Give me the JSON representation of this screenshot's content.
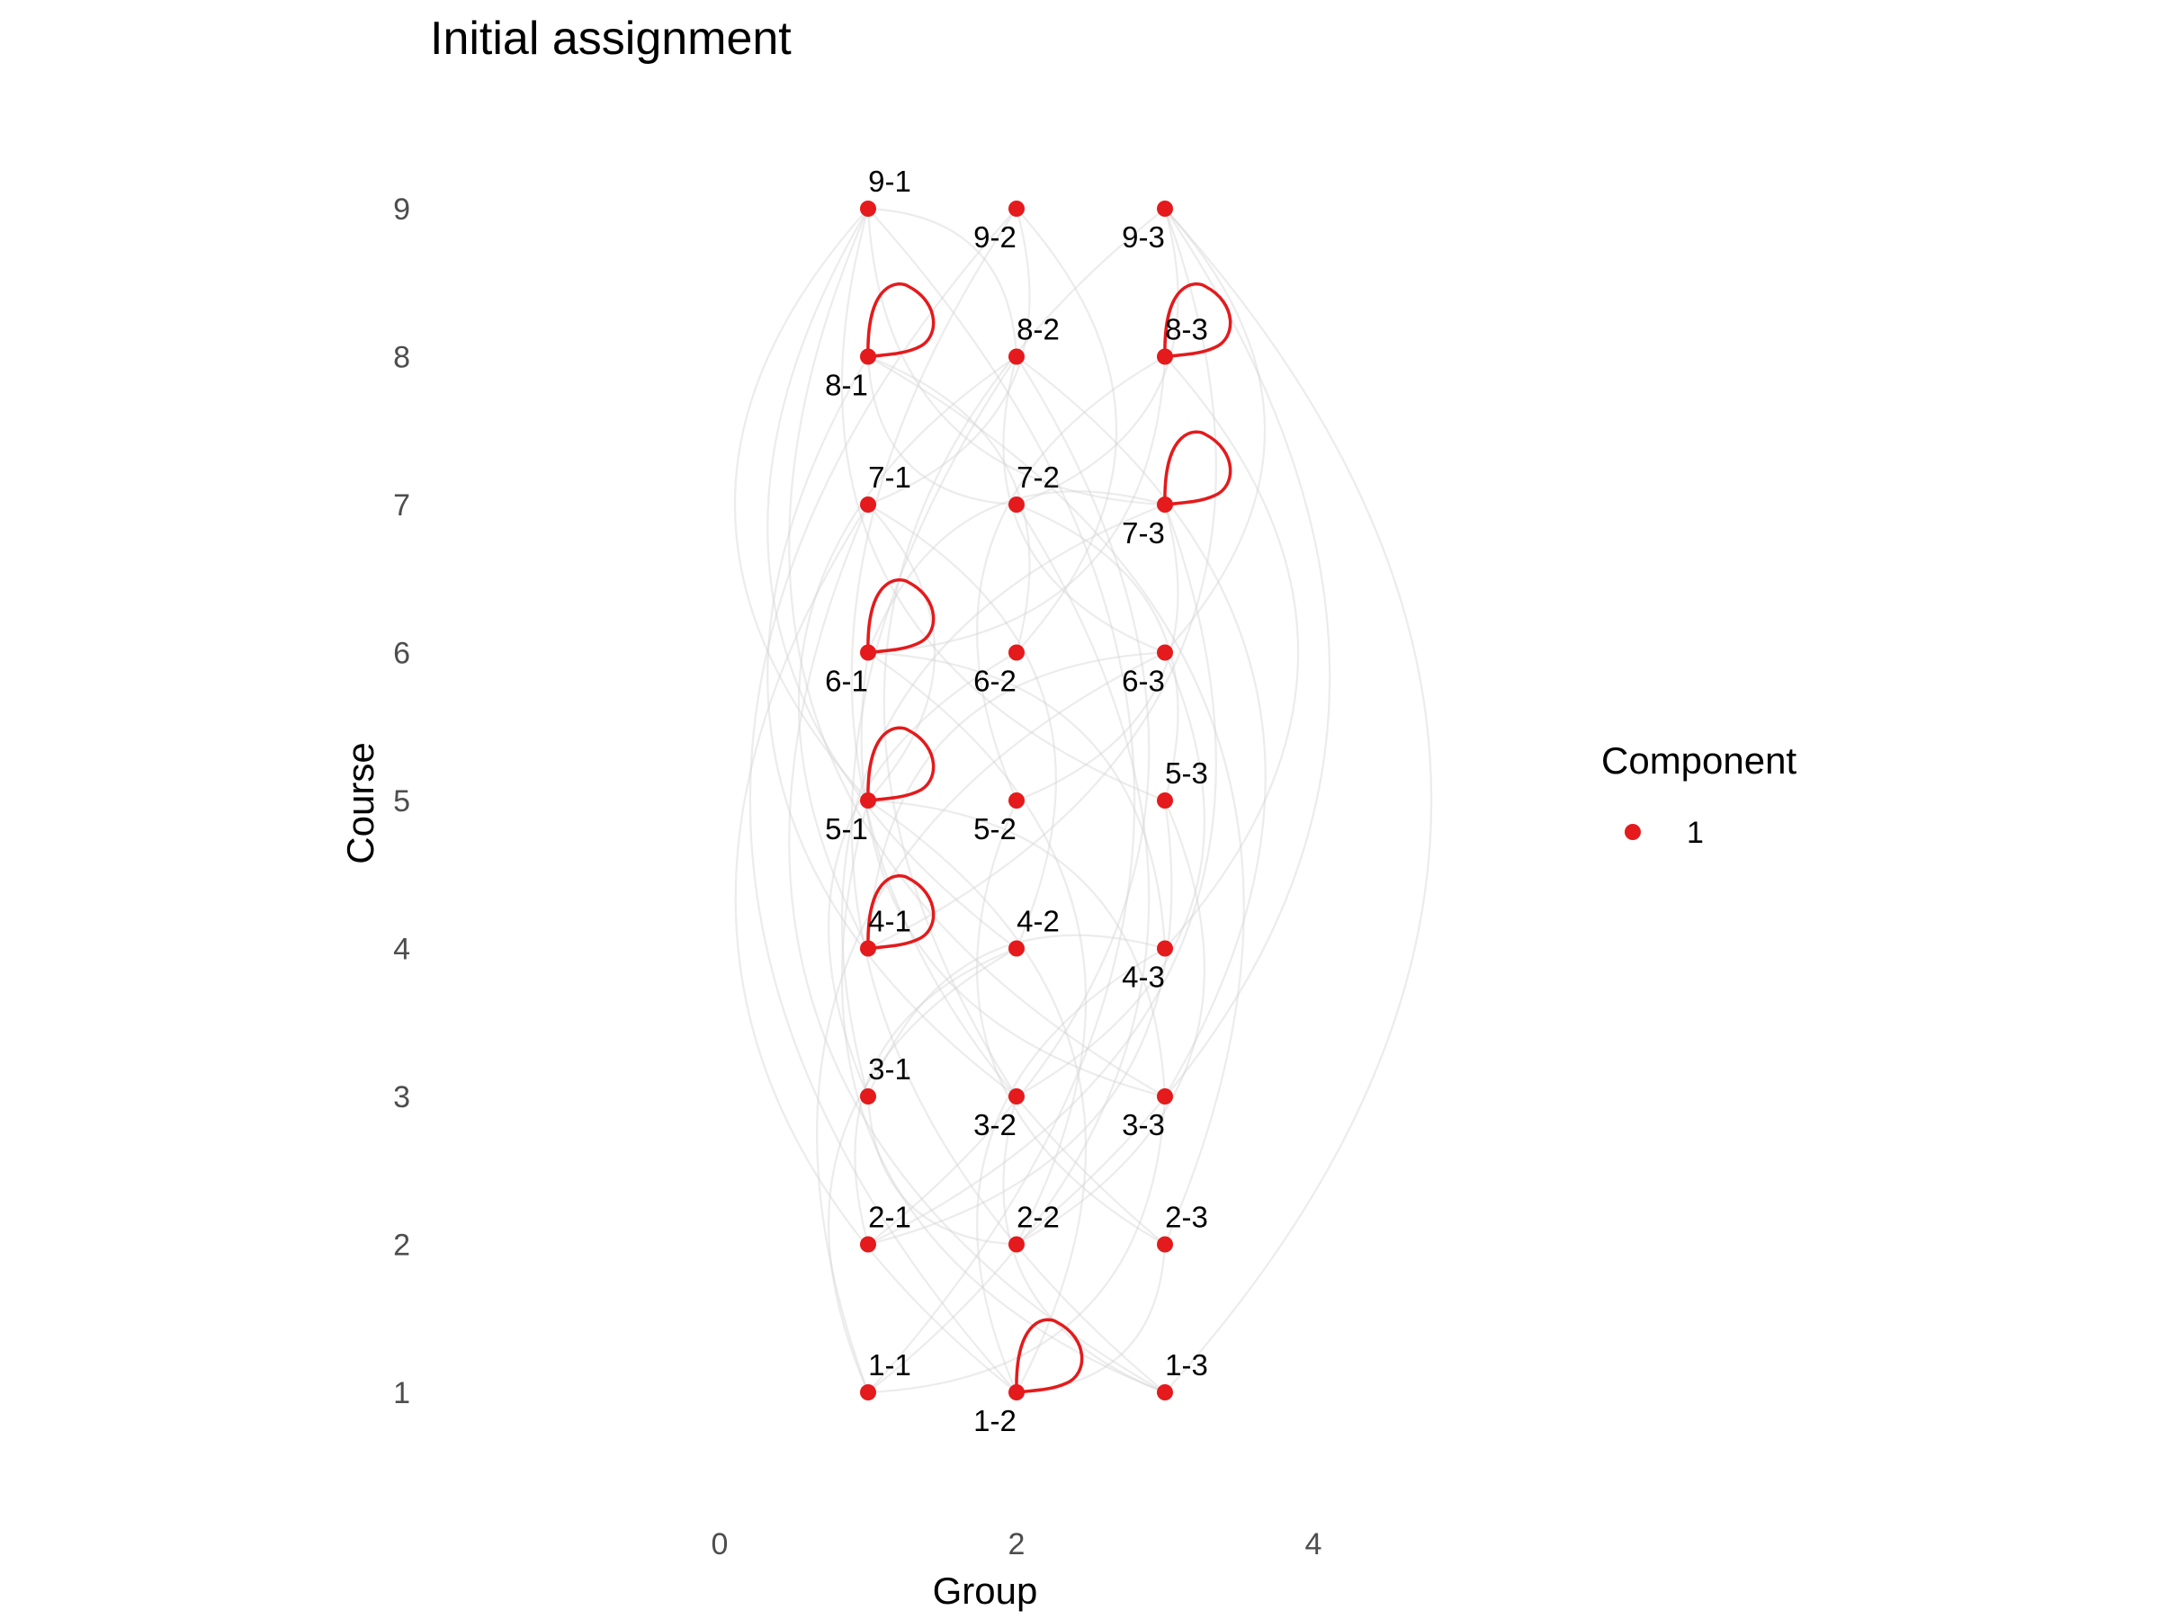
{
  "chart_data": {
    "type": "scatter",
    "title": "Initial assignment",
    "xlabel": "Group",
    "ylabel": "Course",
    "xlim": [
      -1.2,
      5.4
    ],
    "ylim": [
      0.2,
      9.9
    ],
    "x_ticks": [
      0,
      2,
      4
    ],
    "y_ticks": [
      1,
      2,
      3,
      4,
      5,
      6,
      7,
      8,
      9
    ],
    "grid": false,
    "legend": {
      "title": "Component",
      "placement": "right",
      "entries": [
        "1"
      ]
    },
    "colors": {
      "point": "#e41a1c",
      "edge": "#d4d4d4",
      "loop": "#e41a1c"
    },
    "nodes": [
      {
        "label": "1-1",
        "x": 1,
        "y": 1,
        "label_pos": "above"
      },
      {
        "label": "1-2",
        "x": 2,
        "y": 1,
        "label_pos": "below"
      },
      {
        "label": "1-3",
        "x": 3,
        "y": 1,
        "label_pos": "above"
      },
      {
        "label": "2-1",
        "x": 1,
        "y": 2,
        "label_pos": "above"
      },
      {
        "label": "2-2",
        "x": 2,
        "y": 2,
        "label_pos": "above"
      },
      {
        "label": "2-3",
        "x": 3,
        "y": 2,
        "label_pos": "above"
      },
      {
        "label": "3-1",
        "x": 1,
        "y": 3,
        "label_pos": "above"
      },
      {
        "label": "3-2",
        "x": 2,
        "y": 3,
        "label_pos": "below"
      },
      {
        "label": "3-3",
        "x": 3,
        "y": 3,
        "label_pos": "below"
      },
      {
        "label": "4-1",
        "x": 1,
        "y": 4,
        "label_pos": "above"
      },
      {
        "label": "4-2",
        "x": 2,
        "y": 4,
        "label_pos": "above"
      },
      {
        "label": "4-3",
        "x": 3,
        "y": 4,
        "label_pos": "below"
      },
      {
        "label": "5-1",
        "x": 1,
        "y": 5,
        "label_pos": "below"
      },
      {
        "label": "5-2",
        "x": 2,
        "y": 5,
        "label_pos": "below"
      },
      {
        "label": "5-3",
        "x": 3,
        "y": 5,
        "label_pos": "above"
      },
      {
        "label": "6-1",
        "x": 1,
        "y": 6,
        "label_pos": "below"
      },
      {
        "label": "6-2",
        "x": 2,
        "y": 6,
        "label_pos": "below"
      },
      {
        "label": "6-3",
        "x": 3,
        "y": 6,
        "label_pos": "below"
      },
      {
        "label": "7-1",
        "x": 1,
        "y": 7,
        "label_pos": "above"
      },
      {
        "label": "7-2",
        "x": 2,
        "y": 7,
        "label_pos": "above"
      },
      {
        "label": "7-3",
        "x": 3,
        "y": 7,
        "label_pos": "below"
      },
      {
        "label": "8-1",
        "x": 1,
        "y": 8,
        "label_pos": "below"
      },
      {
        "label": "8-2",
        "x": 2,
        "y": 8,
        "label_pos": "above"
      },
      {
        "label": "8-3",
        "x": 3,
        "y": 8,
        "label_pos": "above"
      },
      {
        "label": "9-1",
        "x": 1,
        "y": 9,
        "label_pos": "above"
      },
      {
        "label": "9-2",
        "x": 2,
        "y": 9,
        "label_pos": "below"
      },
      {
        "label": "9-3",
        "x": 3,
        "y": 9,
        "label_pos": "below"
      }
    ],
    "loops": [
      "1-2",
      "4-1",
      "5-1",
      "6-1",
      "7-3",
      "8-1",
      "8-3"
    ],
    "edges": [
      [
        "1-1",
        "9-1"
      ],
      [
        "1-2",
        "9-2"
      ],
      [
        "1-3",
        "9-3"
      ],
      [
        "1-1",
        "6-3"
      ],
      [
        "2-1",
        "8-2"
      ],
      [
        "3-3",
        "9-1"
      ],
      [
        "4-2",
        "7-1"
      ],
      [
        "1-3",
        "5-1"
      ],
      [
        "2-2",
        "6-1"
      ],
      [
        "3-1",
        "7-3"
      ],
      [
        "2-3",
        "8-1"
      ],
      [
        "1-2",
        "4-3"
      ],
      [
        "4-1",
        "9-3"
      ],
      [
        "5-2",
        "8-3"
      ],
      [
        "6-2",
        "9-2"
      ],
      [
        "3-2",
        "8-1"
      ],
      [
        "1-1",
        "3-3"
      ],
      [
        "2-1",
        "4-2"
      ],
      [
        "5-3",
        "7-2"
      ],
      [
        "6-3",
        "8-2"
      ],
      [
        "7-1",
        "9-2"
      ],
      [
        "3-1",
        "6-2"
      ],
      [
        "4-3",
        "8-3"
      ],
      [
        "1-2",
        "7-1"
      ],
      [
        "2-2",
        "9-3"
      ],
      [
        "5-1",
        "9-1"
      ],
      [
        "6-1",
        "8-3"
      ],
      [
        "2-3",
        "5-2"
      ],
      [
        "3-2",
        "6-3"
      ],
      [
        "1-1",
        "4-2"
      ],
      [
        "7-2",
        "9-3"
      ],
      [
        "4-1",
        "6-3"
      ],
      [
        "3-3",
        "5-1"
      ],
      [
        "1-3",
        "8-2"
      ],
      [
        "2-1",
        "7-3"
      ],
      [
        "5-3",
        "9-1"
      ],
      [
        "6-2",
        "8-1"
      ],
      [
        "3-1",
        "4-3"
      ],
      [
        "1-2",
        "2-3"
      ],
      [
        "7-3",
        "9-1"
      ],
      [
        "2-2",
        "5-3"
      ],
      [
        "4-2",
        "9-1"
      ],
      [
        "1-1",
        "7-2"
      ],
      [
        "3-3",
        "6-1"
      ],
      [
        "5-2",
        "7-3"
      ],
      [
        "2-3",
        "9-2"
      ],
      [
        "8-2",
        "9-1"
      ],
      [
        "1-3",
        "3-2"
      ],
      [
        "4-3",
        "6-1"
      ],
      [
        "6-1",
        "7-3"
      ],
      [
        "2-1",
        "5-3"
      ],
      [
        "3-2",
        "9-3"
      ],
      [
        "1-2",
        "5-1"
      ],
      [
        "4-1",
        "8-2"
      ],
      [
        "6-3",
        "9-3"
      ],
      [
        "2-2",
        "3-1"
      ],
      [
        "5-1",
        "7-1"
      ],
      [
        "1-3",
        "7-1"
      ],
      [
        "3-3",
        "8-2"
      ],
      [
        "7-2",
        "8-1"
      ]
    ]
  }
}
